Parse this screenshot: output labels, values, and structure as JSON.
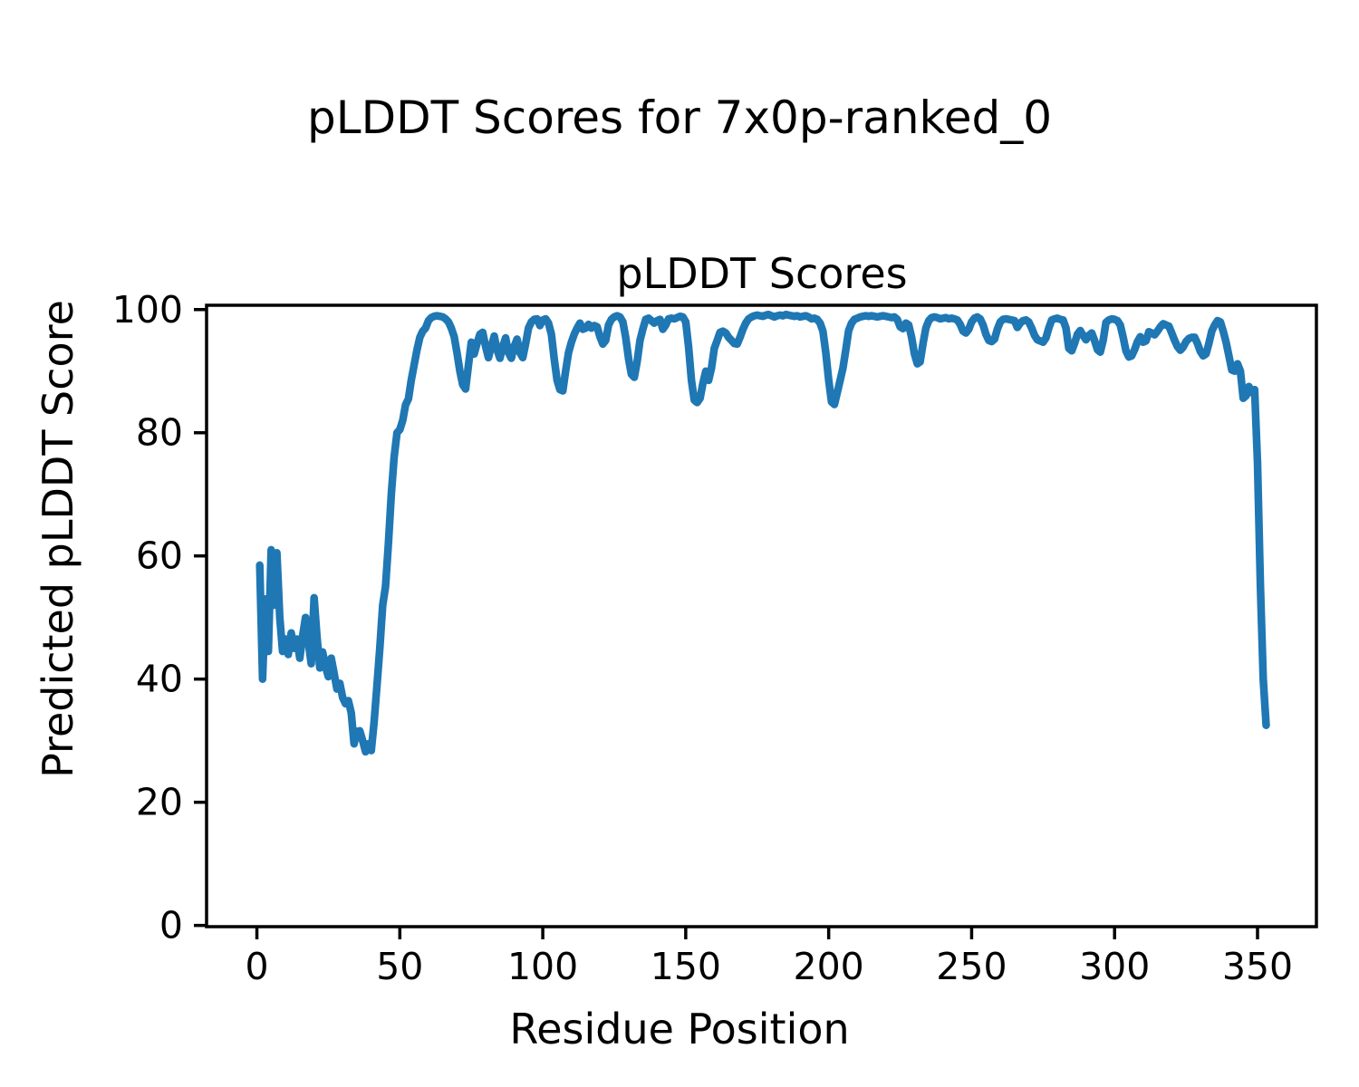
{
  "figure": {
    "suptitle": "pLDDT Scores for 7x0p-ranked_0"
  },
  "colors": {
    "line": "#1f77b4",
    "axes": "#000000",
    "background": "#ffffff",
    "text": "#000000"
  },
  "chart_data": {
    "type": "line",
    "suptitle": "pLDDT Scores for 7x0p-ranked_0",
    "title": "pLDDT Scores",
    "xlabel": "Residue Position",
    "ylabel": "Predicted pLDDT Score",
    "xlim": [
      -17.6,
      370.6
    ],
    "ylim": [
      -0.2,
      100.7
    ],
    "xticks": [
      0,
      50,
      100,
      150,
      200,
      250,
      300,
      350
    ],
    "yticks": [
      0,
      20,
      40,
      60,
      80,
      100
    ],
    "grid": false,
    "legend": null,
    "series": [
      {
        "name": "pLDDT",
        "color": "#1f77b4",
        "x_start": 1,
        "x_step": 1,
        "y": [
          58.5,
          40,
          53,
          44.5,
          61,
          52,
          60.5,
          50,
          44.5,
          46.5,
          44,
          47.5,
          45,
          46.5,
          43.4,
          47,
          50,
          46,
          42.5,
          53.2,
          47,
          41.8,
          44.4,
          42,
          40.4,
          43.4,
          41,
          38.4,
          39.3,
          37,
          36,
          36.5,
          34.5,
          29.5,
          31.5,
          31.6,
          30,
          28.2,
          29.5,
          28.4,
          33,
          39,
          45,
          52,
          55,
          62,
          70,
          76,
          80,
          80.5,
          82,
          84.5,
          85.5,
          88.5,
          91,
          93.5,
          95.5,
          96.5,
          97,
          98.2,
          98.7,
          98.9,
          99,
          98.9,
          98.8,
          98.5,
          98,
          97,
          95.6,
          93,
          90,
          87.8,
          87.1,
          91,
          94.7,
          92.8,
          94.5,
          96,
          96.3,
          94,
          92.2,
          94,
          95.7,
          93.5,
          92.1,
          94,
          95.4,
          93,
          92.1,
          94,
          95.2,
          93,
          92.2,
          94.5,
          97,
          98,
          98.4,
          98.5,
          97.4,
          98.3,
          98.5,
          97.8,
          96,
          92,
          88.5,
          87,
          86.8,
          90,
          93,
          94.7,
          96,
          97,
          97.8,
          96.8,
          97,
          97.6,
          97,
          97.4,
          97.2,
          95.6,
          94.4,
          95,
          97.5,
          98.4,
          98.8,
          99,
          98.8,
          98,
          95.5,
          92,
          89.5,
          89,
          91.5,
          95,
          96.8,
          98.4,
          98.6,
          98.2,
          97.8,
          98.2,
          98.4,
          96.8,
          97.5,
          98.5,
          98.6,
          98.5,
          98.7,
          98.9,
          98.8,
          98,
          94,
          88.5,
          85.3,
          84.9,
          85.6,
          88,
          90,
          88.5,
          90.5,
          93.7,
          95,
          96.3,
          96.5,
          96.2,
          95.5,
          95,
          94.5,
          94.4,
          95.5,
          96.8,
          97.8,
          98.5,
          98.8,
          99,
          99.1,
          99,
          98.9,
          99.1,
          99.2,
          99,
          98.8,
          99,
          99.1,
          99,
          99.2,
          99.1,
          99,
          98.9,
          99,
          98.8,
          98.9,
          99,
          98.8,
          98.5,
          98.6,
          98.4,
          97.8,
          96.5,
          93,
          88.5,
          85,
          84.6,
          86.5,
          88.5,
          90.5,
          93.5,
          96.6,
          97.8,
          98.4,
          98.6,
          98.8,
          98.9,
          99,
          98.9,
          99,
          98.9,
          98.8,
          98.9,
          99,
          98.9,
          98.8,
          98.7,
          98.8,
          98.4,
          97.2,
          96.9,
          97.8,
          97.5,
          95.5,
          92.8,
          91.2,
          91.5,
          94.5,
          97,
          98.2,
          98.7,
          98.8,
          98.7,
          98.5,
          98.6,
          98.7,
          98.5,
          98.6,
          98.5,
          98.3,
          97.6,
          96.5,
          96.2,
          96.8,
          98,
          98.6,
          98.8,
          98.5,
          97.5,
          96,
          95,
          94.8,
          95.2,
          96.8,
          98,
          98.4,
          98.5,
          98.4,
          98.3,
          98.2,
          97.1,
          97.8,
          98.2,
          98.3,
          98,
          97,
          95.8,
          95.1,
          94.9,
          94.7,
          95.4,
          97,
          98.3,
          98.5,
          98.6,
          98.4,
          98.3,
          97,
          93.7,
          93.3,
          94.5,
          96,
          96.6,
          95.8,
          95.1,
          95.8,
          96.2,
          95,
          93.5,
          93.1,
          95,
          97.9,
          98.3,
          98.5,
          98.4,
          98.2,
          97.5,
          95.5,
          93.3,
          92.3,
          92.5,
          93.5,
          94.8,
          95.6,
          94.7,
          94.9,
          96.4,
          96.2,
          95.9,
          96.5,
          97.2,
          97.7,
          97.5,
          97.3,
          96.2,
          95,
          94,
          93.4,
          93.9,
          94.8,
          95.3,
          95.5,
          95.5,
          94.5,
          93.2,
          92.5,
          92.8,
          94.5,
          96.5,
          97.5,
          98.2,
          98,
          96.5,
          94.7,
          92.5,
          90.2,
          90,
          91.2,
          90,
          85.6,
          86,
          87.5,
          86.5,
          87,
          75,
          55,
          40,
          32.5
        ]
      }
    ]
  }
}
